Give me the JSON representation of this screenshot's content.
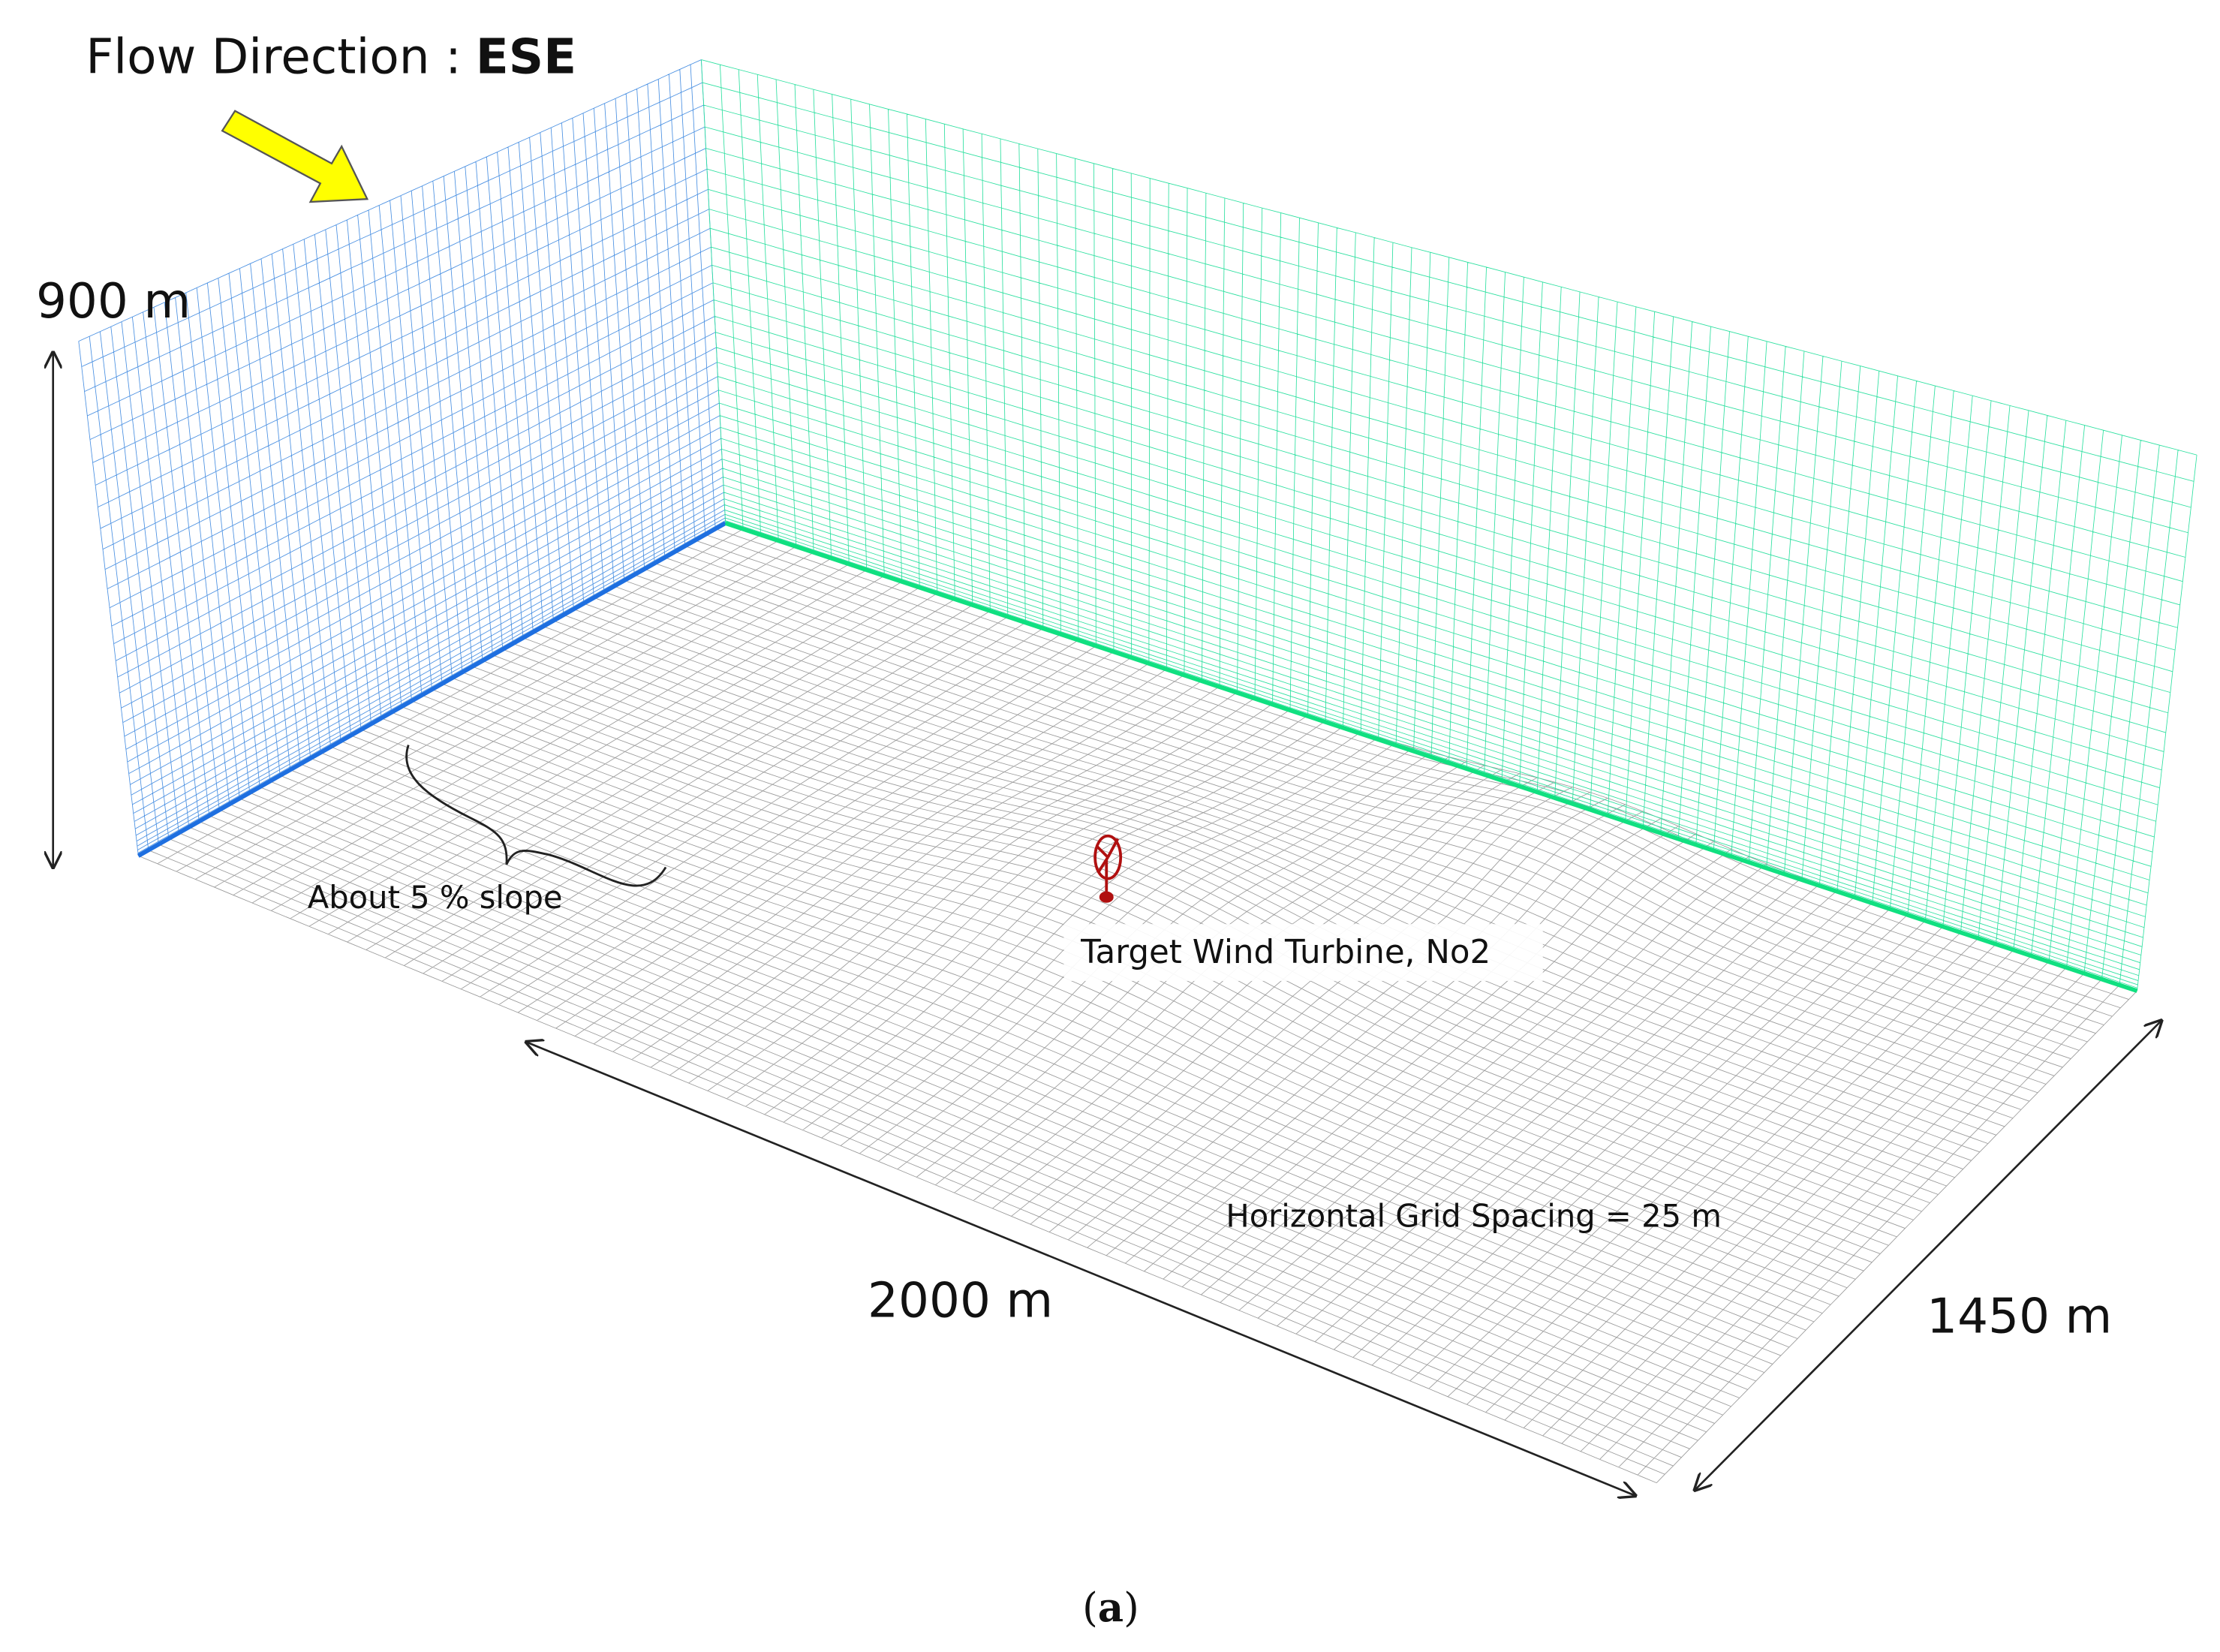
{
  "header": {
    "flow_label": "Flow Direction :",
    "flow_direction": "ESE"
  },
  "labels": {
    "height": "900 m",
    "slope": "About 5 % slope",
    "turbine": "Target Wind Turbine, No2",
    "length": "2000 m",
    "width": "1450 m",
    "spacing": "Horizontal Grid Spacing = 25 m"
  },
  "caption": [
    "(",
    "a",
    ")"
  ]
}
